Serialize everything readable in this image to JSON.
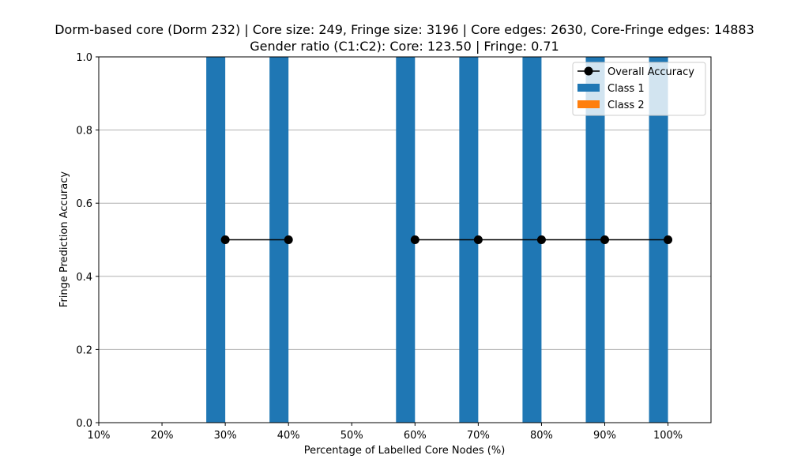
{
  "chart_data": {
    "type": "bar",
    "title_lines": [
      "Dorm-based core (Dorm 232) | Core size: 249, Fringe size: 3196 | Core edges: 2630, Core-Fringe edges: 14883",
      "Gender ratio (C1:C2): Core: 123.50 | Fringe: 0.71"
    ],
    "xlabel": "Percentage of Labelled Core Nodes (%)",
    "ylabel": "Fringe Prediction Accuracy",
    "x_tick_labels": [
      "10%",
      "20%",
      "30%",
      "40%",
      "50%",
      "60%",
      "70%",
      "80%",
      "90%",
      "100%"
    ],
    "x_ticks": [
      10,
      20,
      30,
      40,
      50,
      60,
      70,
      80,
      90,
      100
    ],
    "xlim": [
      10,
      106.8
    ],
    "ylim": [
      0,
      1.0
    ],
    "y_ticks": [
      0.0,
      0.2,
      0.4,
      0.6,
      0.8,
      1.0
    ],
    "y_tick_labels": [
      "0.0",
      "0.2",
      "0.4",
      "0.6",
      "0.8",
      "1.0"
    ],
    "grid": "y",
    "legend_position": "top-right",
    "series": [
      {
        "name": "Class 1",
        "kind": "bar",
        "color": "#1f77b4",
        "x": [
          30,
          40,
          60,
          70,
          80,
          90,
          100
        ],
        "values": [
          1.0,
          1.0,
          1.0,
          1.0,
          1.0,
          1.0,
          1.0
        ]
      },
      {
        "name": "Class 2",
        "kind": "bar",
        "color": "#ff7f0e",
        "x": [
          30,
          40,
          60,
          70,
          80,
          90,
          100
        ],
        "values": [
          0.0,
          0.0,
          0.0,
          0.0,
          0.0,
          0.0,
          0.0
        ]
      },
      {
        "name": "Overall Accuracy",
        "kind": "line",
        "color": "#000000",
        "segments": [
          {
            "x": [
              30,
              40
            ],
            "y": [
              0.5,
              0.5
            ]
          },
          {
            "x": [
              60,
              70,
              80,
              90,
              100
            ],
            "y": [
              0.5,
              0.5,
              0.5,
              0.5,
              0.5
            ]
          }
        ]
      }
    ],
    "legend_order": [
      "Overall Accuracy",
      "Class 1",
      "Class 2"
    ]
  }
}
